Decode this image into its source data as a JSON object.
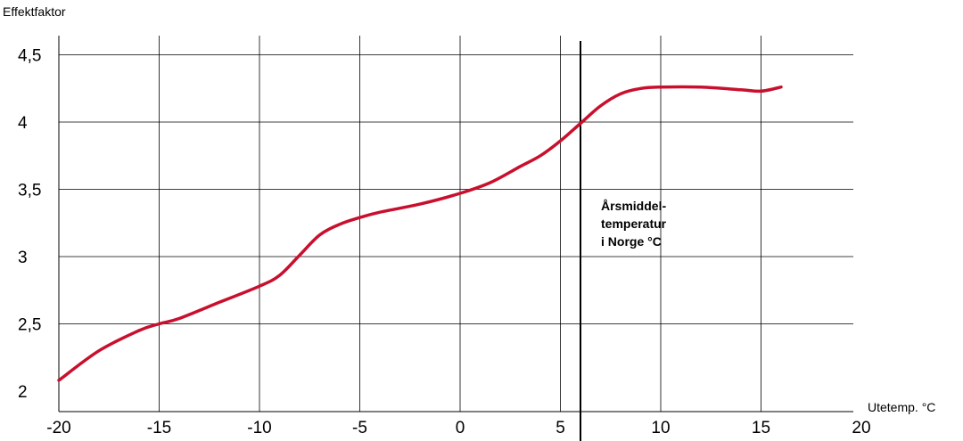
{
  "chart_data": {
    "type": "line",
    "title": "",
    "ylabel": "Effektfaktor",
    "xlabel": "Utetemp. °C",
    "xlim": [
      -20,
      20
    ],
    "ylim": [
      2,
      4.5
    ],
    "x_ticks": [
      -20,
      -15,
      -10,
      -5,
      0,
      5,
      10,
      15,
      20
    ],
    "x_tick_labels": [
      "-20",
      "-15",
      "-10",
      "-5",
      "0",
      "5",
      "10",
      "15",
      "20"
    ],
    "y_ticks": [
      2.5,
      3,
      3.5,
      4,
      4.5
    ],
    "y_tick_labels": [
      "2,5",
      "3",
      "3,5",
      "4",
      "4,5"
    ],
    "y_bottom_label": "2",
    "grid": true,
    "series": [
      {
        "color": "#c8102e",
        "x": [
          -20,
          -18,
          -16,
          -15,
          -14,
          -12,
          -10,
          -9,
          -8,
          -7,
          -6,
          -5,
          -4,
          -2,
          0,
          1.5,
          3,
          4,
          5,
          6,
          7,
          8,
          9,
          10,
          12,
          14,
          15,
          16
        ],
        "y": [
          2.08,
          2.3,
          2.45,
          2.5,
          2.54,
          2.66,
          2.78,
          2.86,
          3.01,
          3.16,
          3.24,
          3.29,
          3.33,
          3.39,
          3.47,
          3.55,
          3.67,
          3.75,
          3.86,
          3.99,
          4.12,
          4.21,
          4.25,
          4.26,
          4.26,
          4.24,
          4.23,
          4.26
        ]
      }
    ],
    "reference_line": {
      "x": 6,
      "color": "#000000",
      "label_lines": [
        "Årsmiddel-",
        "temperatur",
        "i Norge °C"
      ]
    }
  }
}
